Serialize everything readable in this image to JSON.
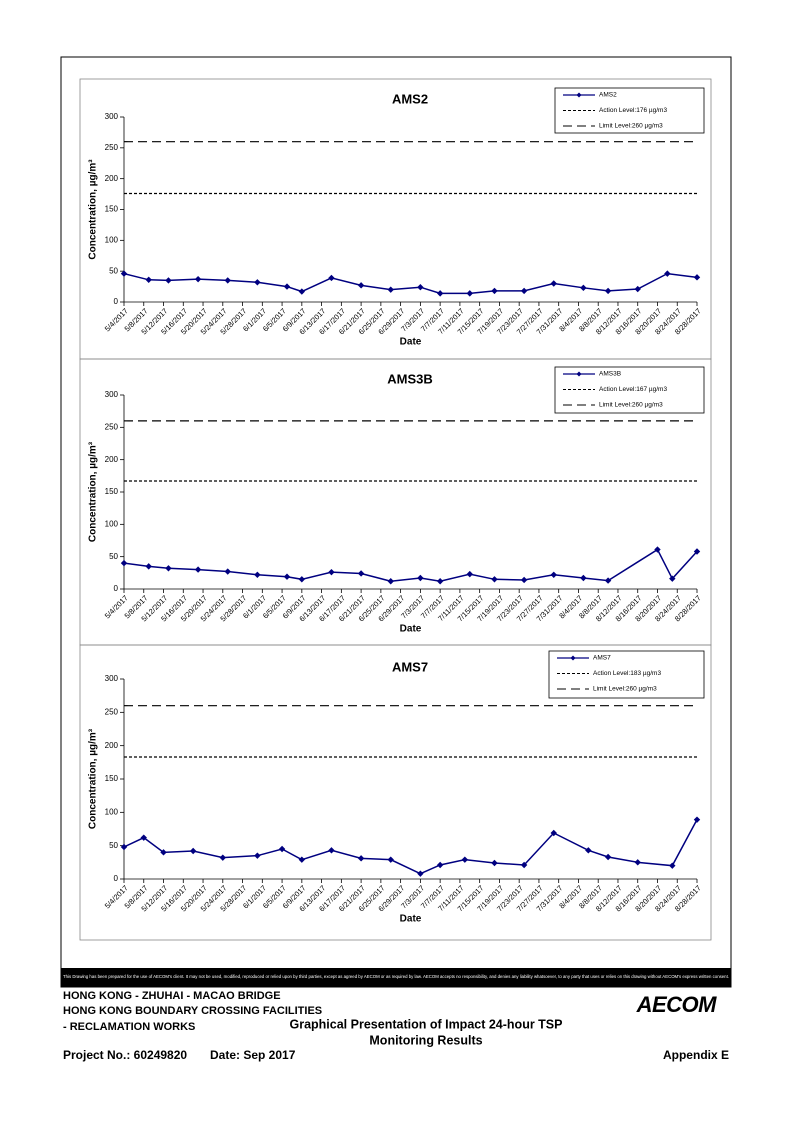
{
  "chart_data": [
    {
      "type": "line",
      "title": "AMS2",
      "x_label": "Date",
      "y_label": "Concentration, µg/m³",
      "x": [
        "5/4/2017",
        "5/9/2017",
        "5/13/2017",
        "5/19/2017",
        "5/25/2017",
        "5/31/2017",
        "6/6/2017",
        "6/9/2017",
        "6/15/2017",
        "6/21/2017",
        "6/27/2017",
        "7/3/2017",
        "7/7/2017",
        "7/13/2017",
        "7/18/2017",
        "7/24/2017",
        "7/30/2017",
        "8/5/2017",
        "8/10/2017",
        "8/16/2017",
        "8/22/2017",
        "8/28/2017"
      ],
      "series": [
        {
          "name": "AMS2",
          "color": "#000080",
          "values": [
            46,
            36,
            35,
            37,
            35,
            32,
            25,
            17,
            39,
            27,
            20,
            24,
            14,
            14,
            18,
            18,
            30,
            23,
            18,
            21,
            46,
            40
          ]
        }
      ],
      "reference_lines": [
        {
          "name": "Action Level:176 µg/m3",
          "value": 176,
          "dash": "dotted"
        },
        {
          "name": "Limit Level:260 µg/m3",
          "value": 260,
          "dash": "dashed"
        }
      ],
      "xlim": [
        "5/4/2017",
        "8/28/2017"
      ],
      "xticks": [
        "5/4/2017",
        "5/8/2017",
        "5/12/2017",
        "5/16/2017",
        "5/20/2017",
        "5/24/2017",
        "5/28/2017",
        "6/1/2017",
        "6/5/2017",
        "6/9/2017",
        "6/13/2017",
        "6/17/2017",
        "6/21/2017",
        "6/25/2017",
        "6/29/2017",
        "7/3/2017",
        "7/7/2017",
        "7/11/2017",
        "7/15/2017",
        "7/19/2017",
        "7/23/2017",
        "7/27/2017",
        "7/31/2017",
        "8/4/2017",
        "8/8/2017",
        "8/12/2017",
        "8/16/2017",
        "8/20/2017",
        "8/24/2017",
        "8/28/2017"
      ],
      "ylim": [
        0,
        300
      ],
      "yticks": [
        0,
        50,
        100,
        150,
        200,
        250,
        300
      ],
      "legend": "upper right"
    },
    {
      "type": "line",
      "title": "AMS3B",
      "x_label": "Date",
      "y_label": "Concentration, µg/m³",
      "x": [
        "5/4/2017",
        "5/9/2017",
        "5/13/2017",
        "5/19/2017",
        "5/25/2017",
        "5/31/2017",
        "6/6/2017",
        "6/9/2017",
        "6/15/2017",
        "6/21/2017",
        "6/27/2017",
        "7/3/2017",
        "7/7/2017",
        "7/13/2017",
        "7/18/2017",
        "7/24/2017",
        "7/30/2017",
        "8/5/2017",
        "8/10/2017",
        "8/20/2017",
        "8/23/2017",
        "8/28/2017"
      ],
      "series": [
        {
          "name": "AMS3B",
          "color": "#000080",
          "values": [
            40,
            35,
            32,
            30,
            27,
            22,
            19,
            15,
            26,
            24,
            12,
            17,
            12,
            23,
            15,
            14,
            22,
            17,
            13,
            61,
            16,
            58
          ]
        }
      ],
      "reference_lines": [
        {
          "name": "Action Level:167 µg/m3",
          "value": 167,
          "dash": "dotted"
        },
        {
          "name": "Limit Level:260 µg/m3",
          "value": 260,
          "dash": "dashed"
        }
      ],
      "xlim": [
        "5/4/2017",
        "8/28/2017"
      ],
      "xticks": [
        "5/4/2017",
        "5/8/2017",
        "5/12/2017",
        "5/16/2017",
        "5/20/2017",
        "5/24/2017",
        "5/28/2017",
        "6/1/2017",
        "6/5/2017",
        "6/9/2017",
        "6/13/2017",
        "6/17/2017",
        "6/21/2017",
        "6/25/2017",
        "6/29/2017",
        "7/3/2017",
        "7/7/2017",
        "7/11/2017",
        "7/15/2017",
        "7/19/2017",
        "7/23/2017",
        "7/27/2017",
        "7/31/2017",
        "8/4/2017",
        "8/8/2017",
        "8/12/2017",
        "8/16/2017",
        "8/20/2017",
        "8/24/2017",
        "8/28/2017"
      ],
      "ylim": [
        0,
        300
      ],
      "yticks": [
        0,
        50,
        100,
        150,
        200,
        250,
        300
      ],
      "legend": "upper right"
    },
    {
      "type": "line",
      "title": "AMS7",
      "x_label": "Date",
      "y_label": "Concentration, µg/m³",
      "x": [
        "5/4/2017",
        "5/8/2017",
        "5/12/2017",
        "5/18/2017",
        "5/24/2017",
        "5/31/2017",
        "6/5/2017",
        "6/9/2017",
        "6/15/2017",
        "6/21/2017",
        "6/27/2017",
        "7/3/2017",
        "7/7/2017",
        "7/12/2017",
        "7/18/2017",
        "7/24/2017",
        "7/30/2017",
        "8/6/2017",
        "8/10/2017",
        "8/16/2017",
        "8/23/2017",
        "8/28/2017"
      ],
      "series": [
        {
          "name": "AMS7",
          "color": "#000080",
          "values": [
            48,
            62,
            40,
            42,
            32,
            35,
            45,
            29,
            43,
            31,
            29,
            8,
            21,
            29,
            24,
            21,
            69,
            43,
            33,
            25,
            20,
            89
          ]
        }
      ],
      "reference_lines": [
        {
          "name": "Action Level:183 µg/m3",
          "value": 183,
          "dash": "dotted"
        },
        {
          "name": "Limit Level:260 µg/m3",
          "value": 260,
          "dash": "dashed"
        }
      ],
      "xlim": [
        "5/4/2017",
        "8/28/2017"
      ],
      "xticks": [
        "5/4/2017",
        "5/8/2017",
        "5/12/2017",
        "5/16/2017",
        "5/20/2017",
        "5/24/2017",
        "5/28/2017",
        "6/1/2017",
        "6/5/2017",
        "6/9/2017",
        "6/13/2017",
        "6/17/2017",
        "6/21/2017",
        "6/25/2017",
        "6/29/2017",
        "7/3/2017",
        "7/7/2017",
        "7/11/2017",
        "7/15/2017",
        "7/19/2017",
        "7/23/2017",
        "7/27/2017",
        "7/31/2017",
        "8/4/2017",
        "8/8/2017",
        "8/12/2017",
        "8/16/2017",
        "8/20/2017",
        "8/24/2017",
        "8/28/2017"
      ],
      "ylim": [
        0,
        300
      ],
      "yticks": [
        0,
        50,
        100,
        150,
        200,
        250,
        300
      ],
      "legend": "upper right"
    }
  ],
  "disclaimer": "This Drawing has been prepared for the use of AECOM's client. It may not be used, modified, reproduced or relied upon by third parties, except as agreed by AECOM or as required by law. AECOM accepts no responsibility, and denies any liability whatsoever, to any party that uses or relies on this drawing without AECOM's express written consent.",
  "footer": {
    "project_lines": [
      "HONG KONG - ZHUHAI - MACAO BRIDGE",
      "HONG KONG BOUNDARY CROSSING FACILITIES",
      "- RECLAMATION WORKS"
    ],
    "title_lines": [
      "Graphical Presentation of Impact 24-hour TSP",
      "Monitoring Results"
    ],
    "logo": "AECOM",
    "project_no": "Project No.: 60249820",
    "date": "Date: Sep 2017",
    "appendix": "Appendix E"
  }
}
